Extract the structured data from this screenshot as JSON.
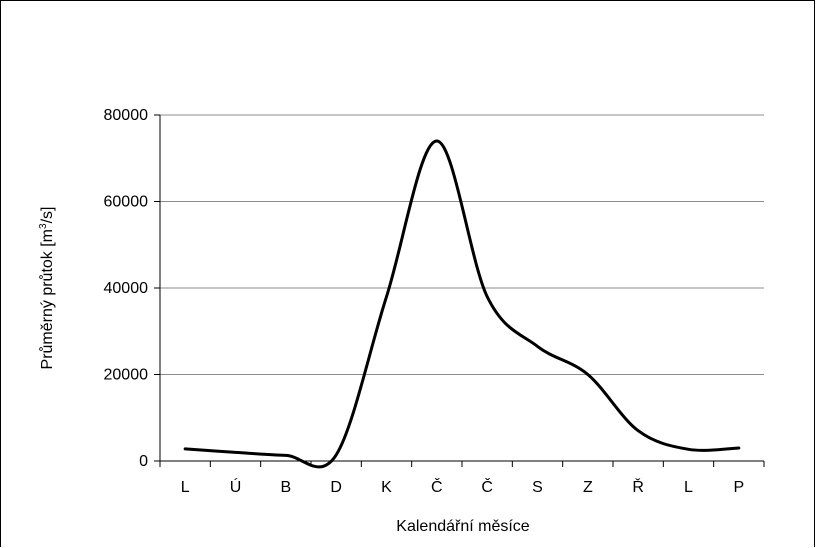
{
  "chart_data": {
    "type": "line",
    "title": "",
    "xlabel": "Kalendářní měsíce",
    "ylabel_parts": [
      "Průměrný průtok [m",
      "3",
      "/s]"
    ],
    "ylabel": "Průměrný průtok [m³/s]",
    "ylim": [
      0,
      80000
    ],
    "y_ticks": [
      "0",
      "20000",
      "40000",
      "60000",
      "80000"
    ],
    "categories": [
      "L",
      "Ú",
      "B",
      "D",
      "K",
      "Č",
      "Č",
      "S",
      "Z",
      "Ř",
      "L",
      "P"
    ],
    "grid": "horizontal",
    "legend": "none",
    "line_color": "#000000",
    "series": [
      {
        "values": [
          2800,
          2000,
          1300,
          1400,
          38000,
          74000,
          38000,
          26500,
          20000,
          7000,
          2700,
          3000
        ]
      }
    ]
  }
}
